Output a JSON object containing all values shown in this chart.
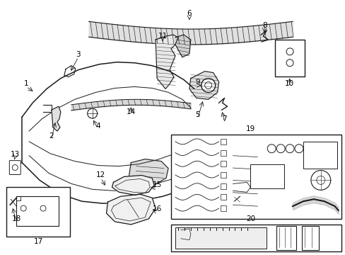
{
  "bg_color": "#ffffff",
  "fig_width": 4.89,
  "fig_height": 3.6,
  "dpi": 100,
  "lc": "#1a1a1a",
  "tc": "#000000",
  "fs": 7.5
}
